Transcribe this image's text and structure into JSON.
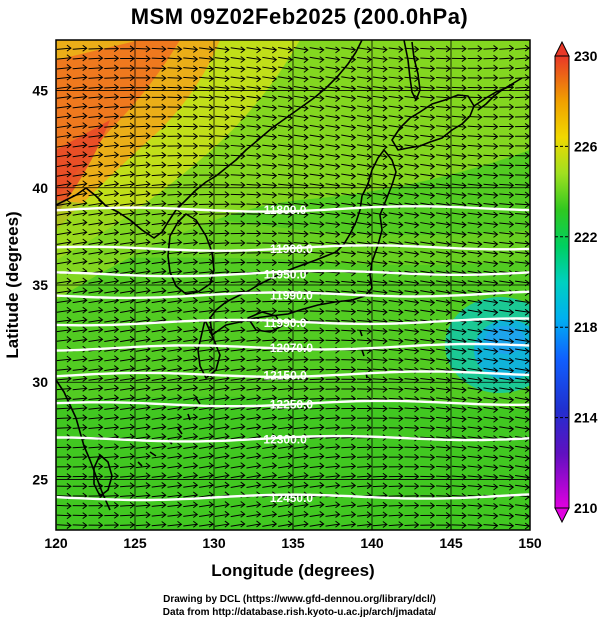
{
  "title": "MSM 09Z02Feb2025 (200.0hPa)",
  "credits": {
    "line1": "Drawing by DCL (https://www.gfd-dennou.org/library/dcl/)",
    "line2": "Data from http://database.rish.kyoto-u.ac.jp/arch/jmadata/"
  },
  "colors": {
    "arrow": "#000000",
    "contour": "#ffffff",
    "coast": "#000000"
  },
  "chart_data": {
    "type": "heatmap",
    "title": "MSM 09Z02Feb2025 (200.0hPa)",
    "xlabel": "Longitude (degrees)",
    "ylabel": "Latitude  (degrees)",
    "xlim": [
      120,
      150
    ],
    "ylim": [
      22.4,
      47.6
    ],
    "x_ticks": [
      120,
      125,
      130,
      135,
      140,
      145,
      150
    ],
    "y_ticks": [
      25,
      30,
      35,
      40,
      45
    ],
    "grid": true,
    "colorbar": {
      "min": 210,
      "max": 230,
      "ticks": [
        210,
        214,
        218,
        222,
        226,
        230
      ],
      "colors": [
        "#e000e0",
        "#3a2fd0",
        "#1060ff",
        "#00c8ff",
        "#00d890",
        "#10c020",
        "#60d020",
        "#b8e020",
        "#f0d000",
        "#f0a000",
        "#f06020",
        "#e83828"
      ],
      "extend": "both"
    },
    "contours": [
      {
        "label": "11800.0",
        "lat": 38.9
      },
      {
        "label": "11900.0",
        "lat": 36.9
      },
      {
        "label": "11950.0",
        "lat": 35.6
      },
      {
        "label": "11990.0",
        "lat": 34.5
      },
      {
        "label": "11990.0",
        "lat": 33.1
      },
      {
        "label": "12070.0",
        "lat": 31.8
      },
      {
        "label": "12150.0",
        "lat": 30.4
      },
      {
        "label": "12250.0",
        "lat": 28.9
      },
      {
        "label": "12300.0",
        "lat": 27.1
      },
      {
        "label": "12450.0",
        "lat": 24.1
      }
    ],
    "wind": {
      "direction": "eastward",
      "wind_lon_step": 1.0,
      "wind_lat_step": 0.5
    }
  }
}
